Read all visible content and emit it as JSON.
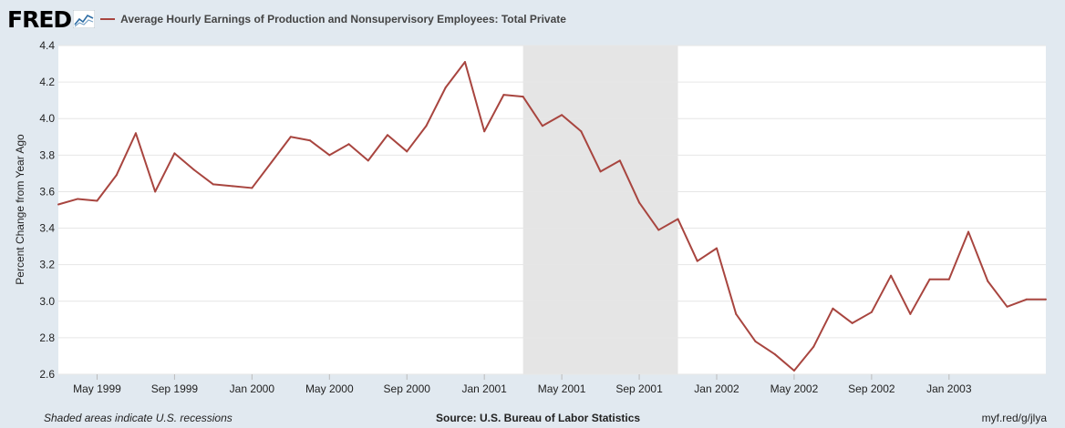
{
  "header": {
    "logo_text": "FRED",
    "logo_icon": "fred-line-graph-icon",
    "series_title": "Average Hourly Earnings of Production and Nonsupervisory Employees: Total Private"
  },
  "footer": {
    "recession_note": "Shaded areas indicate U.S. recessions",
    "source": "Source: U.S. Bureau of Labor Statistics",
    "short_link": "myf.red/g/jlya"
  },
  "colors": {
    "line": "#a8453f",
    "recession_shade": "#e5e5e5",
    "background": "#e1e9f0",
    "plot": "#ffffff"
  },
  "chart_data": {
    "type": "line",
    "ylabel": "Percent Change from Year Ago",
    "ylim": [
      2.6,
      4.4
    ],
    "yticks": [
      2.6,
      2.8,
      3.0,
      3.2,
      3.4,
      3.6,
      3.8,
      4.0,
      4.2,
      4.4
    ],
    "ytick_labels": [
      "2.6",
      "2.8",
      "3.0",
      "3.2",
      "3.4",
      "3.6",
      "3.8",
      "4.0",
      "4.2",
      "4.4"
    ],
    "xlim": [
      "1999-03",
      "2003-06"
    ],
    "xticks": [
      "1999-05",
      "1999-09",
      "2000-01",
      "2000-05",
      "2000-09",
      "2001-01",
      "2001-05",
      "2001-09",
      "2002-01",
      "2002-05",
      "2002-09",
      "2003-01"
    ],
    "xtick_labels": [
      "May 1999",
      "Sep 1999",
      "Jan 2000",
      "May 2000",
      "Sep 2000",
      "Jan 2001",
      "May 2001",
      "Sep 2001",
      "Jan 2002",
      "May 2002",
      "Sep 2002",
      "Jan 2003"
    ],
    "grid": true,
    "recessions": [
      {
        "start": "2001-03",
        "end": "2001-11"
      }
    ],
    "x": [
      "1999-03",
      "1999-04",
      "1999-05",
      "1999-06",
      "1999-07",
      "1999-08",
      "1999-09",
      "1999-10",
      "1999-11",
      "1999-12",
      "2000-01",
      "2000-02",
      "2000-03",
      "2000-04",
      "2000-05",
      "2000-06",
      "2000-07",
      "2000-08",
      "2000-09",
      "2000-10",
      "2000-11",
      "2000-12",
      "2001-01",
      "2001-02",
      "2001-03",
      "2001-04",
      "2001-05",
      "2001-06",
      "2001-07",
      "2001-08",
      "2001-09",
      "2001-10",
      "2001-11",
      "2001-12",
      "2002-01",
      "2002-02",
      "2002-03",
      "2002-04",
      "2002-05",
      "2002-06",
      "2002-07",
      "2002-08",
      "2002-09",
      "2002-10",
      "2002-11",
      "2002-12",
      "2003-01",
      "2003-02",
      "2003-03",
      "2003-04",
      "2003-05",
      "2003-06"
    ],
    "series": [
      {
        "values": [
          3.53,
          3.56,
          3.55,
          3.69,
          3.92,
          3.6,
          3.81,
          3.72,
          3.64,
          3.63,
          3.62,
          3.76,
          3.9,
          3.88,
          3.8,
          3.86,
          3.77,
          3.91,
          3.82,
          3.96,
          4.17,
          4.31,
          3.93,
          4.13,
          4.12,
          3.96,
          4.02,
          3.93,
          3.71,
          3.77,
          3.54,
          3.39,
          3.45,
          3.22,
          3.29,
          2.93,
          2.78,
          2.71,
          2.62,
          2.75,
          2.96,
          2.88,
          2.94,
          3.14,
          2.93,
          3.12,
          3.12,
          3.38,
          3.11,
          2.97,
          3.01,
          3.01
        ]
      }
    ]
  }
}
